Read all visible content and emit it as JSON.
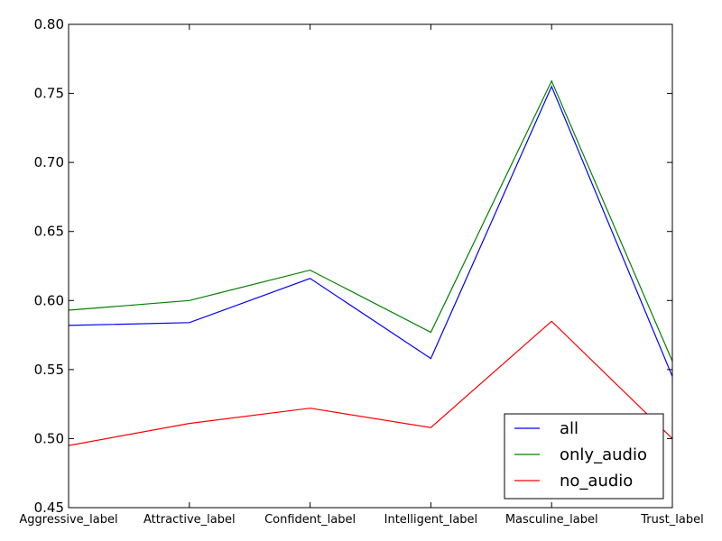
{
  "chart_data": {
    "type": "line",
    "title": "",
    "xlabel": "",
    "ylabel": "",
    "categories": [
      "Aggressive_label",
      "Attractive_label",
      "Confident_label",
      "Intelligent_label",
      "Masculine_label",
      "Trust_label"
    ],
    "ylim": [
      0.45,
      0.8
    ],
    "yticks": [
      "0.45",
      "0.50",
      "0.55",
      "0.60",
      "0.65",
      "0.70",
      "0.75",
      "0.80"
    ],
    "grid": false,
    "legend_position": "lower-right",
    "series": [
      {
        "name": "all",
        "color": "#0000ff",
        "values": [
          0.582,
          0.584,
          0.616,
          0.558,
          0.755,
          0.545
        ]
      },
      {
        "name": "only_audio",
        "color": "#008000",
        "values": [
          0.593,
          0.6,
          0.622,
          0.577,
          0.759,
          0.556
        ]
      },
      {
        "name": "no_audio",
        "color": "#ff0000",
        "values": [
          0.495,
          0.511,
          0.522,
          0.508,
          0.585,
          0.5
        ]
      }
    ]
  }
}
